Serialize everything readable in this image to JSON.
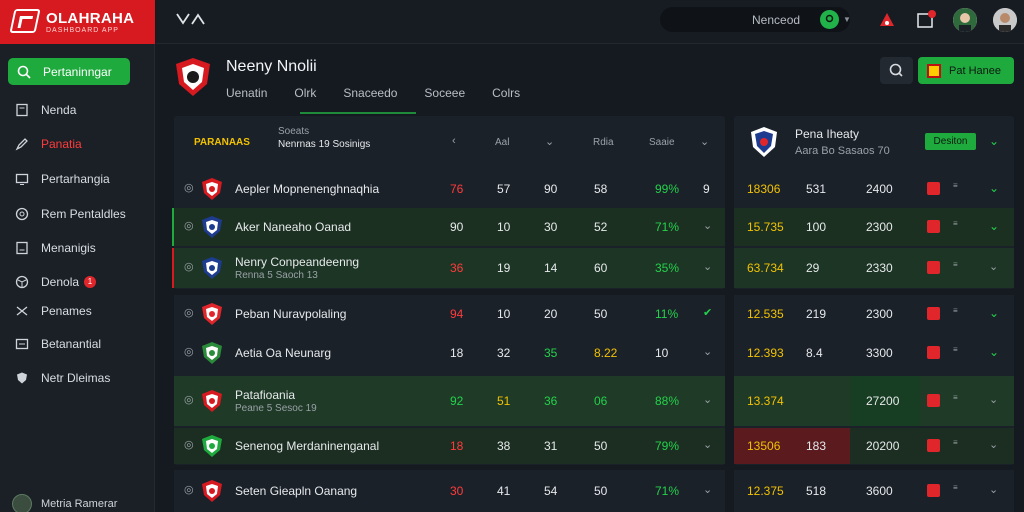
{
  "brand": {
    "title": "OLAHRAHA",
    "subtitle": "DASHBOARD APP"
  },
  "sidebar": {
    "primary": "Pertaninngar",
    "items": [
      {
        "label": "Nenda",
        "icon": "book-icon"
      },
      {
        "label": "Panatia",
        "icon": "pen-icon"
      },
      {
        "label": "Pertarhangia",
        "icon": "monitor-icon"
      },
      {
        "label": "Rem Pentaldles",
        "icon": "globe-icon"
      },
      {
        "label": "Menanigis",
        "icon": "screen-icon"
      },
      {
        "label": "Denola",
        "icon": "ball-icon",
        "badge": "1"
      },
      {
        "label": "Penames",
        "icon": "shuffle-icon"
      },
      {
        "label": "Betanantial",
        "icon": "list-icon"
      },
      {
        "label": "Netr Dleimas",
        "icon": "shield-icon"
      }
    ],
    "user": "Metria Ramerar"
  },
  "topbar": {
    "search_text": "Nenceod",
    "notif_count": "1"
  },
  "header": {
    "title": "Neeny Nnolii",
    "tabs": [
      "Uenatin",
      "Olrk",
      "Snaceedo",
      "Soceee",
      "Colrs"
    ],
    "cta": "Pat Hanee"
  },
  "left_table": {
    "header": {
      "badge": "PARANAAS",
      "title1": "Soeats",
      "title2": "Nenrnas 19 Sosinigs",
      "cols": [
        "Aal",
        "Rdia",
        "Saaie"
      ]
    },
    "rows": [
      {
        "name": "Aepler Mopnenenghnaqhia",
        "sub": "",
        "v": [
          "76",
          "57",
          "90",
          "58",
          "99%",
          "9"
        ],
        "colors": [
          "red",
          "",
          "",
          "",
          "green",
          ""
        ]
      },
      {
        "name": "Aker Naneaho Oanad",
        "sub": "",
        "v": [
          "90",
          "10",
          "30",
          "52",
          "71%",
          ""
        ],
        "colors": [
          "",
          "",
          "",
          "",
          "green",
          ""
        ]
      },
      {
        "name": "Nenry Conpeandeenng",
        "sub": "Renna 5 Saoch 13",
        "v": [
          "36",
          "19",
          "14",
          "60",
          "35%",
          ""
        ],
        "colors": [
          "red",
          "",
          "",
          "",
          "green",
          ""
        ]
      },
      {
        "name": "Peban Nuravpolaling",
        "sub": "",
        "v": [
          "94",
          "10",
          "20",
          "50",
          "11%",
          ""
        ],
        "colors": [
          "red",
          "",
          "",
          "",
          "green",
          ""
        ]
      },
      {
        "name": "Aetia Oa Neunarg",
        "sub": "",
        "v": [
          "18",
          "32",
          "35",
          "8.22",
          "10",
          ""
        ],
        "colors": [
          "",
          "",
          "green",
          "yellow",
          "",
          ""
        ]
      },
      {
        "name": "Patafioania",
        "sub": "Peane 5 Sesoc 19",
        "v": [
          "92",
          "51",
          "36",
          "06",
          "88%",
          ""
        ],
        "colors": [
          "green",
          "yellow",
          "green",
          "green",
          "green",
          ""
        ]
      },
      {
        "name": "Senenog Merdaninenganal",
        "sub": "",
        "v": [
          "18",
          "38",
          "31",
          "50",
          "79%",
          ""
        ],
        "colors": [
          "red",
          "",
          "",
          "",
          "green",
          ""
        ]
      },
      {
        "name": "Seten Gieapln Oanang",
        "sub": "",
        "v": [
          "30",
          "41",
          "54",
          "50",
          "71%",
          ""
        ],
        "colors": [
          "red",
          "",
          "",
          "",
          "green",
          ""
        ]
      }
    ]
  },
  "right_table": {
    "header": {
      "title": "Pena Iheaty",
      "sub": "Aara Bo Sasaos 70",
      "button": "Desiton"
    },
    "rows": [
      {
        "a": "18306",
        "b": "531",
        "c": "2400"
      },
      {
        "a": "15.735",
        "b": "100",
        "c": "2300"
      },
      {
        "a": "63.734",
        "b": "29",
        "c": "2330"
      },
      {
        "a": "12.535",
        "b": "219",
        "c": "2300"
      },
      {
        "a": "12.393",
        "b": "8.4",
        "c": "3300"
      },
      {
        "a": "13.374",
        "b": "",
        "c": "27200"
      },
      {
        "a": "13506",
        "b": "183",
        "c": "20200"
      },
      {
        "a": "12.375",
        "b": "518",
        "c": "3600"
      }
    ]
  }
}
